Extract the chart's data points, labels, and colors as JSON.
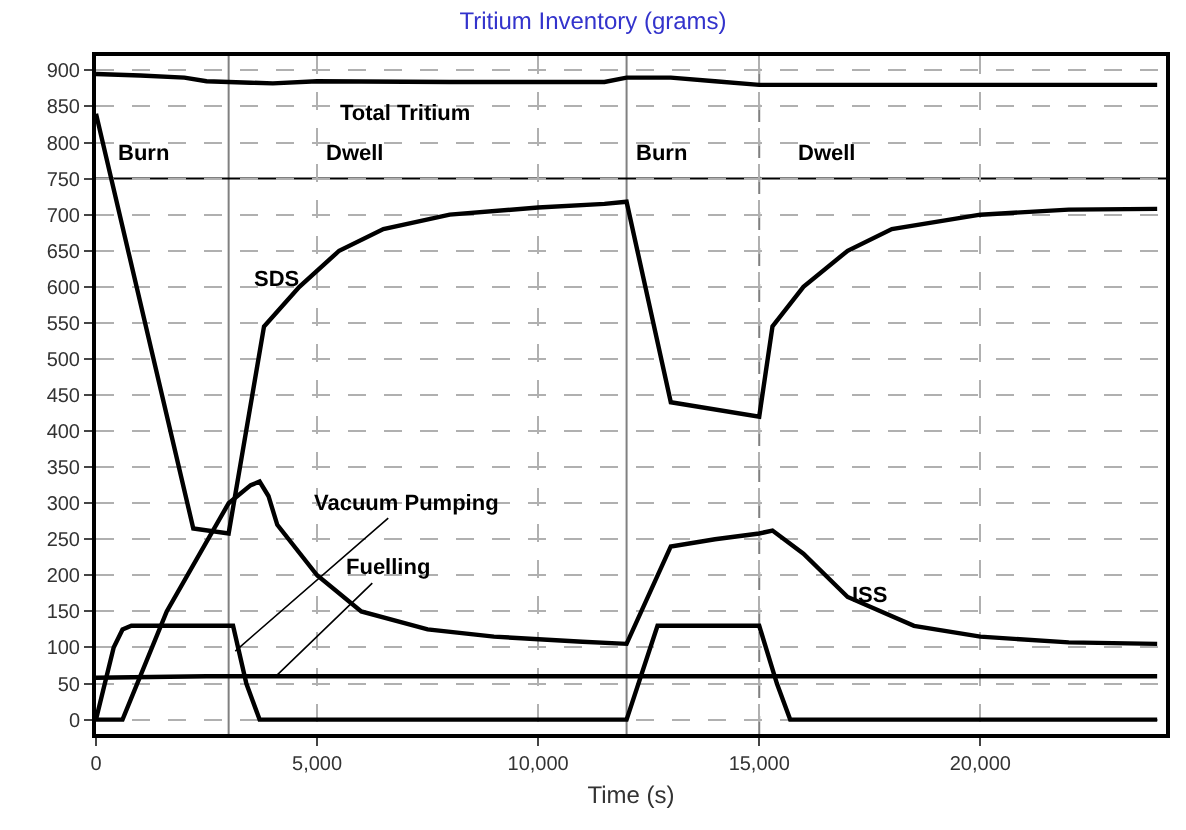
{
  "chart_data": {
    "type": "line",
    "title": "Tritium Inventory (grams)",
    "xlabel": "Time (s)",
    "xlim": [
      0,
      24200
    ],
    "xticks": [
      {
        "value": 0,
        "label": "0"
      },
      {
        "value": 5000,
        "label": "5,000"
      },
      {
        "value": 10000,
        "label": "10,000"
      },
      {
        "value": 15000,
        "label": "15,000"
      },
      {
        "value": 20000,
        "label": "20,000"
      }
    ],
    "ylim": [
      -20,
      920
    ],
    "yticks": [
      0,
      50,
      100,
      150,
      200,
      250,
      300,
      350,
      400,
      450,
      500,
      550,
      600,
      650,
      700,
      750,
      800,
      850,
      900
    ],
    "grid": true,
    "legend": false,
    "marker": "none",
    "line_style": "solid",
    "series": [
      {
        "name": "Total Tritium",
        "color": "#000000",
        "x": [
          0,
          1000,
          2000,
          2500,
          3500,
          4000,
          5000,
          8000,
          11500,
          12000,
          13000,
          14000,
          15000,
          16000,
          20000,
          24000
        ],
        "values": [
          895,
          893,
          890,
          885,
          883,
          882,
          885,
          884,
          884,
          890,
          890,
          885,
          880,
          880,
          880,
          880
        ]
      },
      {
        "name": "SDS",
        "color": "#000000",
        "x": [
          0,
          2200,
          3000,
          3800,
          4600,
          5500,
          6500,
          8000,
          10000,
          11500,
          12000,
          13000,
          15000,
          15300,
          16000,
          17000,
          18000,
          20000,
          22000,
          24000
        ],
        "values": [
          840,
          265,
          258,
          545,
          600,
          650,
          680,
          700,
          710,
          715,
          718,
          440,
          420,
          545,
          600,
          650,
          680,
          700,
          707,
          708
        ]
      },
      {
        "name": "ISS",
        "color": "#000000",
        "x": [
          0,
          600,
          1600,
          3000,
          3500,
          3700,
          3900,
          4100,
          5000,
          6000,
          7500,
          9000,
          11000,
          12000,
          13000,
          14000,
          15000,
          15300,
          16000,
          17000,
          18500,
          20000,
          22000,
          24000
        ],
        "values": [
          0,
          0,
          150,
          300,
          325,
          330,
          310,
          270,
          200,
          150,
          125,
          115,
          108,
          105,
          240,
          250,
          258,
          262,
          230,
          170,
          130,
          115,
          107,
          105
        ]
      },
      {
        "name": "Vacuum Pumping",
        "color": "#000000",
        "x": [
          0,
          400,
          600,
          800,
          3000,
          3100,
          3400,
          3700,
          12000,
          12700,
          15000,
          15400,
          15700,
          24000
        ],
        "values": [
          0,
          100,
          125,
          130,
          130,
          130,
          50,
          0,
          0,
          130,
          130,
          50,
          0,
          0
        ]
      },
      {
        "name": "Fuelling",
        "color": "#000000",
        "x": [
          0,
          2500,
          24000
        ],
        "values": [
          58,
          60,
          60
        ]
      }
    ],
    "ref_lines": [
      {
        "axis": "x",
        "value": 3000,
        "color": "#808080",
        "line_style": "solid"
      },
      {
        "axis": "x",
        "value": 12000,
        "color": "#808080",
        "line_style": "solid"
      },
      {
        "axis": "x",
        "value": 15000,
        "color": "#808080",
        "line_style": "dashed"
      },
      {
        "axis": "y",
        "value": 750,
        "color": "#000000",
        "line_style": "solid"
      }
    ],
    "annotations": [
      "Burn",
      "Dwell",
      "Burn",
      "Dwell"
    ]
  }
}
